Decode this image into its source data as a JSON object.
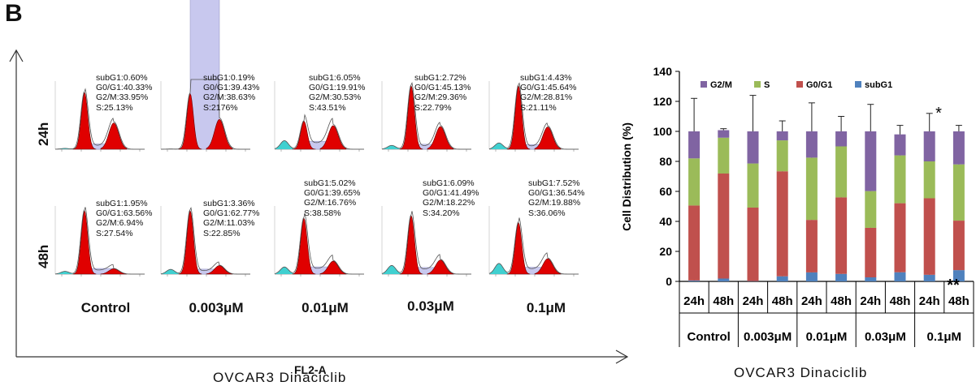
{
  "panel_label": "B",
  "left": {
    "row_labels": [
      "24h",
      "48h"
    ],
    "conditions": [
      "Control",
      "0.003μM",
      "0.01μM",
      "0.03μM",
      "0.1μM"
    ],
    "x_axis_label": "FL2-A",
    "bottom_title": "OVCAR3  Dinaciclib",
    "histograms": [
      [
        [
          "subG1:0.60%",
          "G0/G1:40.33%",
          "G2/M:33.95%",
          "S:25.13%"
        ],
        [
          "subG1:0.19%",
          "G0/G1:39.43%",
          "G2/M:38.63%",
          "S:2176%"
        ],
        [
          "subG1:6.05%",
          "G0/G1:19.91%",
          "G2/M:30.53%",
          "S:43.51%"
        ],
        [
          "subG1:2.72%",
          "G0/G1:45.13%",
          "G2/M:29.36%",
          "S:22.79%"
        ],
        [
          "subG1:4.43%",
          "G0/G1:45.64%",
          "G2/M:28.81%",
          "S:21.11%"
        ]
      ],
      [
        [
          "subG1:1.95%",
          "G0/G1:63.56%",
          "G2/M:6.94%",
          "S:27.54%"
        ],
        [
          "subG1:3.36%",
          "G0/G1:62.77%",
          "G2/M:11.03%",
          "S:22.85%"
        ],
        [
          "subG1:5.02%",
          "G0/G1:39.65%",
          "G2/M:16.76%",
          "S:38.58%"
        ],
        [
          "subG1:6.09%",
          "G0/G1:41.49%",
          "G2/M:18.22%",
          "S:34.20%"
        ],
        [
          "subG1:7.52%",
          "G0/G1:36.54%",
          "G2/M:19.88%",
          "S:36.06%"
        ]
      ]
    ]
  },
  "right": {
    "bottom_title": "OVCAR3   Dinaciclib",
    "group_labels": [
      "Control",
      "0.003μM",
      "0.01μM",
      "0.03μM",
      "0.1μM"
    ],
    "significance": {
      "top": "*",
      "bottom": "**"
    }
  },
  "colors": {
    "subG1": "#4f81bd",
    "G0G1": "#c0504d",
    "S": "#9bbb59",
    "G2M": "#8064a2",
    "histogram_fill": "#e00000",
    "histogram_fit": "#c8c8ee",
    "subg1_fill": "#40d0d0"
  },
  "chart_data": {
    "type": "bar",
    "stacked": true,
    "ylabel": "Cell Distribution (%)",
    "xlabel": "",
    "ylim": [
      0,
      140
    ],
    "yticks": [
      0,
      20,
      40,
      60,
      80,
      100,
      120,
      140
    ],
    "categories": [
      "24h",
      "48h",
      "24h",
      "48h",
      "24h",
      "48h",
      "24h",
      "48h",
      "24h",
      "48h"
    ],
    "groups": [
      "Control",
      "0.003μM",
      "0.01μM",
      "0.03μM",
      "0.1μM"
    ],
    "legend_position": "top",
    "series": [
      {
        "name": "subG1",
        "values": [
          0.6,
          1.9,
          0.2,
          3.4,
          6.0,
          5.0,
          2.7,
          6.1,
          4.4,
          7.5
        ],
        "errors": [
          0.5,
          1.0,
          0.5,
          1.5,
          2,
          2,
          1,
          1.5,
          2,
          3
        ]
      },
      {
        "name": "G0/G1",
        "values": [
          50,
          70,
          49,
          70,
          35,
          51,
          33,
          46,
          51,
          33
        ],
        "errors": [
          0,
          1.5,
          0,
          2,
          2,
          3,
          2,
          3,
          2,
          8
        ]
      },
      {
        "name": "S",
        "values": [
          31.4,
          23.9,
          29.4,
          20.6,
          41.5,
          34.0,
          24.5,
          31.9,
          24.6,
          37.5
        ],
        "errors": [
          0,
          0,
          0,
          0,
          2,
          2,
          2,
          2,
          2,
          2
        ]
      },
      {
        "name": "G2/M",
        "values": [
          18,
          5,
          21.4,
          6,
          17.5,
          10,
          39.8,
          14,
          20,
          22
        ],
        "errors": [
          22,
          1,
          24,
          7,
          19,
          10,
          18,
          6,
          12,
          4
        ]
      }
    ]
  }
}
